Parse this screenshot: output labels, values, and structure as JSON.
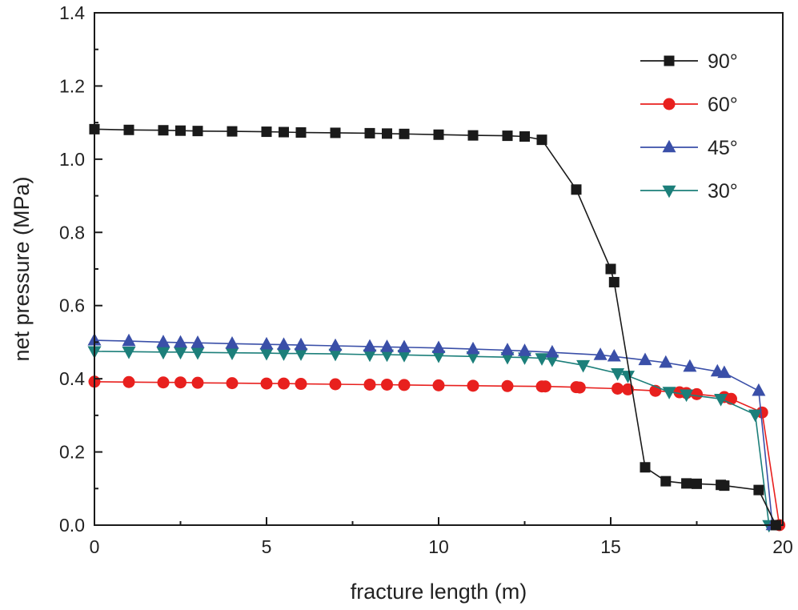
{
  "chart_data": {
    "type": "line",
    "title": "",
    "xlabel": "fracture length (m)",
    "ylabel": "net pressure (MPa)",
    "xlim": [
      0,
      20
    ],
    "ylim": [
      0,
      1.4
    ],
    "xticks": [
      "0",
      "5",
      "10",
      "15",
      "20"
    ],
    "yticks": [
      "0.0",
      "0.2",
      "0.4",
      "0.6",
      "0.8",
      "1.0",
      "1.2",
      "1.4"
    ],
    "grid": false,
    "legend_position": "top-right",
    "series": [
      {
        "name": "90°",
        "color": "#1a1a1a",
        "marker": "square",
        "x": [
          0,
          1,
          2,
          2.5,
          3,
          4,
          5,
          5.5,
          6,
          7,
          8,
          8.5,
          9,
          10,
          11,
          12,
          12.5,
          13,
          14,
          15,
          15.1,
          16,
          16.6,
          17.2,
          17.5,
          18.2,
          18.3,
          19.3,
          19.8
        ],
        "y": [
          1.082,
          1.08,
          1.079,
          1.078,
          1.077,
          1.076,
          1.075,
          1.074,
          1.073,
          1.072,
          1.071,
          1.07,
          1.069,
          1.067,
          1.065,
          1.064,
          1.062,
          1.053,
          0.917,
          0.7,
          0.664,
          0.158,
          0.12,
          0.114,
          0.113,
          0.11,
          0.108,
          0.096,
          0.0
        ]
      },
      {
        "name": "60°",
        "color": "#e8201e",
        "marker": "circle",
        "x": [
          0,
          1,
          2,
          2.5,
          3,
          4,
          5,
          5.5,
          6,
          7,
          8,
          8.5,
          9,
          10,
          11,
          12,
          13,
          13.1,
          14,
          14.1,
          15.2,
          15.5,
          16.3,
          17,
          17.2,
          17.5,
          18.3,
          18.5,
          19.4,
          19.9
        ],
        "y": [
          0.392,
          0.391,
          0.39,
          0.39,
          0.389,
          0.388,
          0.387,
          0.387,
          0.386,
          0.385,
          0.384,
          0.384,
          0.383,
          0.382,
          0.381,
          0.38,
          0.379,
          0.379,
          0.377,
          0.376,
          0.373,
          0.371,
          0.367,
          0.363,
          0.361,
          0.358,
          0.35,
          0.345,
          0.308,
          0.0
        ]
      },
      {
        "name": "45°",
        "color": "#3a4fa8",
        "marker": "triangle-up",
        "x": [
          0,
          1,
          2,
          2.5,
          3,
          4,
          5,
          5.5,
          6,
          7,
          8,
          8.5,
          9,
          10,
          11,
          12,
          12.5,
          13.3,
          14.7,
          15.1,
          16,
          16.6,
          17.3,
          18.1,
          18.3,
          19.3,
          19.7
        ],
        "y": [
          0.505,
          0.503,
          0.5,
          0.499,
          0.498,
          0.496,
          0.494,
          0.493,
          0.492,
          0.49,
          0.488,
          0.487,
          0.486,
          0.484,
          0.481,
          0.478,
          0.476,
          0.472,
          0.465,
          0.461,
          0.451,
          0.444,
          0.433,
          0.42,
          0.416,
          0.367,
          0.0
        ]
      },
      {
        "name": "30°",
        "color": "#1c7f7a",
        "marker": "triangle-down",
        "x": [
          0,
          1,
          2,
          2.5,
          3,
          4,
          5,
          5.5,
          6,
          7,
          8,
          8.5,
          9,
          10,
          11,
          12,
          12.5,
          13,
          13.3,
          14.2,
          15.2,
          15.5,
          16.7,
          17.2,
          18.2,
          19.2,
          19.6
        ],
        "y": [
          0.475,
          0.474,
          0.473,
          0.473,
          0.472,
          0.471,
          0.47,
          0.469,
          0.469,
          0.468,
          0.466,
          0.466,
          0.465,
          0.463,
          0.461,
          0.459,
          0.458,
          0.456,
          0.452,
          0.437,
          0.415,
          0.408,
          0.364,
          0.357,
          0.345,
          0.302,
          0.0
        ]
      }
    ]
  }
}
